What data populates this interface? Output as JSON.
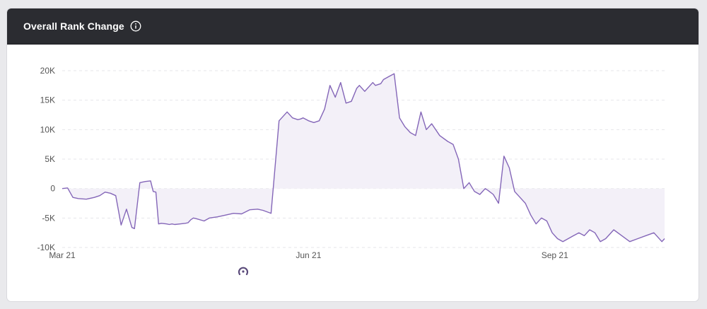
{
  "header": {
    "title": "Overall Rank Change",
    "info_icon": "info-circle-icon"
  },
  "footer": {
    "icon": "loading-spinner-icon"
  },
  "colors": {
    "header_bg": "#2b2c31",
    "line": "#8466b8",
    "fill": "#f3f0f8",
    "grid": "#e6e6e9",
    "tick_text": "#555555"
  },
  "chart_data": {
    "type": "area",
    "title": "Overall Rank Change",
    "xlabel": "",
    "ylabel": "",
    "ylim": [
      -10000,
      20000
    ],
    "yticks": [
      {
        "value": 20000,
        "label": "20K"
      },
      {
        "value": 15000,
        "label": "15K"
      },
      {
        "value": 10000,
        "label": "10K"
      },
      {
        "value": 5000,
        "label": "5K"
      },
      {
        "value": 0,
        "label": "0"
      },
      {
        "value": -5000,
        "label": "-5K"
      },
      {
        "value": -10000,
        "label": "-10K"
      }
    ],
    "xticks": [
      {
        "date": "2021-03-01",
        "label": "Mar 21"
      },
      {
        "date": "2021-06-01",
        "label": "Jun 21"
      },
      {
        "date": "2021-09-01",
        "label": "Sep 21"
      }
    ],
    "xlim": [
      "2021-03-01",
      "2021-10-12"
    ],
    "grid": true,
    "series": [
      {
        "x": [
          "2021-03-01",
          "2021-03-03",
          "2021-03-05",
          "2021-03-07",
          "2021-03-10",
          "2021-03-13",
          "2021-03-15",
          "2021-03-17",
          "2021-03-19",
          "2021-03-21",
          "2021-03-23",
          "2021-03-25",
          "2021-03-27",
          "2021-03-28",
          "2021-03-30",
          "2021-04-01",
          "2021-04-03",
          "2021-04-04",
          "2021-04-05",
          "2021-04-06",
          "2021-04-07",
          "2021-04-09",
          "2021-04-10",
          "2021-04-11",
          "2021-04-12",
          "2021-04-14",
          "2021-04-16",
          "2021-04-17",
          "2021-04-18",
          "2021-04-19",
          "2021-04-20",
          "2021-04-23",
          "2021-04-25",
          "2021-04-28",
          "2021-05-01",
          "2021-05-04",
          "2021-05-07",
          "2021-05-10",
          "2021-05-13",
          "2021-05-15",
          "2021-05-18",
          "2021-05-21",
          "2021-05-24",
          "2021-05-26",
          "2021-05-28",
          "2021-05-29",
          "2021-05-30",
          "2021-06-01",
          "2021-06-03",
          "2021-06-05",
          "2021-06-07",
          "2021-06-09",
          "2021-06-11",
          "2021-06-13",
          "2021-06-15",
          "2021-06-17",
          "2021-06-19",
          "2021-06-20",
          "2021-06-22",
          "2021-06-24",
          "2021-06-25",
          "2021-06-26",
          "2021-06-28",
          "2021-06-29",
          "2021-07-01",
          "2021-07-03",
          "2021-07-05",
          "2021-07-07",
          "2021-07-09",
          "2021-07-11",
          "2021-07-13",
          "2021-07-15",
          "2021-07-17",
          "2021-07-20",
          "2021-07-23",
          "2021-07-25",
          "2021-07-27",
          "2021-07-29",
          "2021-07-31",
          "2021-08-02",
          "2021-08-04",
          "2021-08-06",
          "2021-08-07",
          "2021-08-09",
          "2021-08-11",
          "2021-08-13",
          "2021-08-15",
          "2021-08-17",
          "2021-08-19",
          "2021-08-21",
          "2021-08-23",
          "2021-08-25",
          "2021-08-27",
          "2021-08-29",
          "2021-08-31",
          "2021-09-02",
          "2021-09-04",
          "2021-09-06",
          "2021-09-08",
          "2021-09-10",
          "2021-09-12",
          "2021-09-14",
          "2021-09-16",
          "2021-09-18",
          "2021-09-20",
          "2021-09-23",
          "2021-09-26",
          "2021-09-29",
          "2021-10-02",
          "2021-10-05",
          "2021-10-08",
          "2021-10-11",
          "2021-10-12"
        ],
        "y": [
          0,
          100,
          -1500,
          -1700,
          -1800,
          -1500,
          -1200,
          -600,
          -800,
          -1200,
          -6200,
          -3500,
          -6600,
          -6800,
          1000,
          1200,
          1300,
          -500,
          -600,
          -6000,
          -5900,
          -6000,
          -6100,
          -6000,
          -6100,
          -6000,
          -5900,
          -5800,
          -5300,
          -5000,
          -5100,
          -5500,
          -5000,
          -4800,
          -4500,
          -4200,
          -4300,
          -3600,
          -3500,
          -3700,
          -4200,
          11500,
          13000,
          12000,
          11700,
          11800,
          12000,
          11500,
          11200,
          11500,
          13500,
          17500,
          15500,
          18000,
          14500,
          14800,
          17000,
          17500,
          16500,
          17500,
          18000,
          17500,
          17800,
          18500,
          19000,
          19500,
          12000,
          10500,
          9500,
          9000,
          13000,
          10000,
          11000,
          9000,
          8000,
          7500,
          5000,
          0,
          1000,
          -500,
          -1000,
          0,
          -300,
          -1000,
          -2500,
          5500,
          3500,
          -500,
          -1500,
          -2500,
          -4500,
          -6000,
          -5000,
          -5500,
          -7500,
          -8500,
          -9000,
          -8500,
          -8000,
          -7500,
          -8000,
          -7000,
          -7500,
          -9000,
          -8500,
          -7000,
          -8000,
          -9000,
          -8500,
          -8000,
          -7500,
          -9000,
          -8500
        ]
      }
    ]
  }
}
